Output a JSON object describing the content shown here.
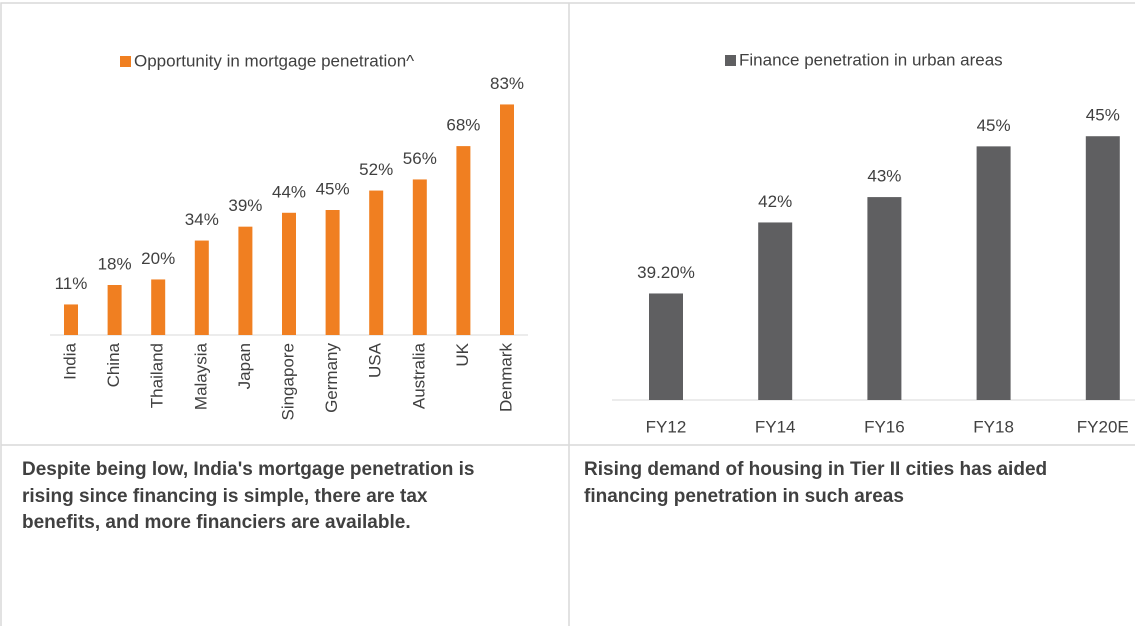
{
  "chart_data": [
    {
      "type": "bar",
      "categories": [
        "India",
        "China",
        "Thailand",
        "Malaysia",
        "Japan",
        "Singapore",
        "Germany",
        "USA",
        "Australia",
        "UK",
        "Denmark"
      ],
      "series": [
        {
          "name": "Opportunity in mortgage penetration^",
          "color": "#f07f21",
          "values": [
            11,
            18,
            20,
            34,
            39,
            44,
            45,
            52,
            56,
            68,
            83
          ],
          "value_labels": [
            "11%",
            "18%",
            "20%",
            "34%",
            "39%",
            "44%",
            "45%",
            "52%",
            "56%",
            "68%",
            "83%"
          ]
        }
      ],
      "ylim": [
        0,
        90
      ]
    },
    {
      "type": "bar",
      "categories": [
        "FY12",
        "FY14",
        "FY16",
        "FY18",
        "FY20E"
      ],
      "series": [
        {
          "name": "Finance penetration in urban areas",
          "color": "#5f5f61",
          "values": [
            39.2,
            42,
            43,
            45,
            45.4
          ],
          "value_labels": [
            "39.20%",
            "42%",
            "43%",
            "45%",
            "45%"
          ]
        }
      ],
      "ylim": [
        35,
        46
      ]
    }
  ],
  "captions": [
    "Despite being low, India's mortgage penetration is rising since financing is simple, there are tax benefits, and more financiers are available.",
    "Rising demand of housing in Tier II cities has aided financing penetration in such areas"
  ]
}
